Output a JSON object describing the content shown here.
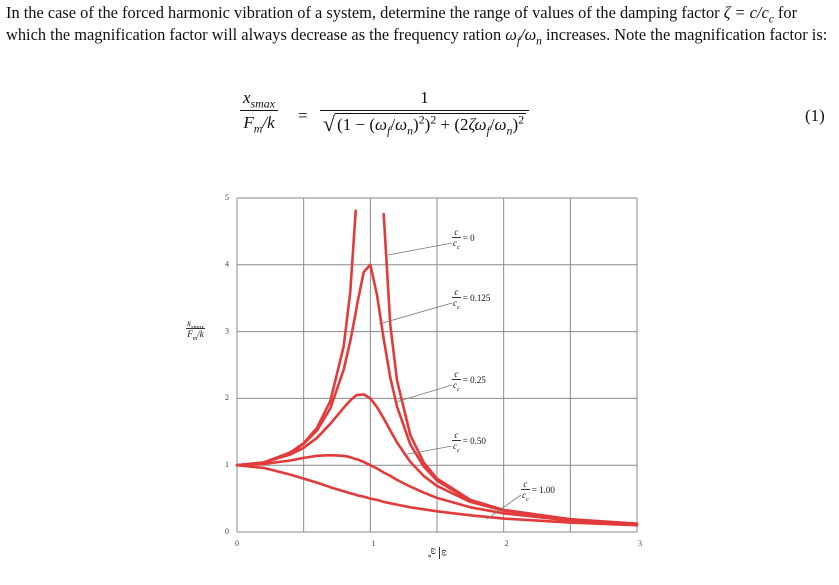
{
  "paragraph": [
    {
      "text": "In the case of the forced harmonic vibration of a system, determine the range of values of the damping factor ",
      "kind": "plain"
    },
    {
      "text": "ζ = c/c",
      "kind": "math"
    },
    {
      "text": "c",
      "kind": "sub"
    },
    {
      "text": " for which the magnification factor will always decrease as the frequency ration ",
      "kind": "plain"
    },
    {
      "text": "ω",
      "kind": "math"
    },
    {
      "text": "f",
      "kind": "sub"
    },
    {
      "text": "/ω",
      "kind": "math"
    },
    {
      "text": "n",
      "kind": "sub"
    },
    {
      "text": " increases. Note the magnification factor is:",
      "kind": "plain"
    }
  ],
  "equation": {
    "lhs_num": [
      {
        "text": "x",
        "kind": "math"
      },
      {
        "text": "smax",
        "kind": "sub"
      }
    ],
    "lhs_den": [
      {
        "text": "F",
        "kind": "math"
      },
      {
        "text": "m",
        "kind": "sub"
      },
      {
        "text": "/k",
        "kind": "math"
      }
    ],
    "relation": "=",
    "rhs_num": [
      {
        "text": "1",
        "kind": "plain"
      }
    ],
    "rhs_den": [
      {
        "text": "(1 − (",
        "kind": "plain"
      },
      {
        "text": "ω",
        "kind": "math"
      },
      {
        "text": "f",
        "kind": "sub"
      },
      {
        "text": "/",
        "kind": "plain"
      },
      {
        "text": "ω",
        "kind": "math"
      },
      {
        "text": "n",
        "kind": "sub"
      },
      {
        "text": ")",
        "kind": "plain"
      },
      {
        "text": "2",
        "kind": "sup"
      },
      {
        "text": ")",
        "kind": "plain"
      },
      {
        "text": "2",
        "kind": "sup"
      },
      {
        "text": " + (2",
        "kind": "plain"
      },
      {
        "text": "ζω",
        "kind": "math"
      },
      {
        "text": "f",
        "kind": "sub"
      },
      {
        "text": "/",
        "kind": "plain"
      },
      {
        "text": "ω",
        "kind": "math"
      },
      {
        "text": "n",
        "kind": "sub"
      },
      {
        "text": ")",
        "kind": "plain"
      },
      {
        "text": "2",
        "kind": "sup"
      }
    ],
    "number": "(1)"
  },
  "chart_data": {
    "type": "line",
    "ylabel": {
      "num": [
        {
          "text": "x",
          "kind": "math"
        },
        {
          "text": "smax",
          "kind": "sub"
        }
      ],
      "den": [
        {
          "text": "F",
          "kind": "math"
        },
        {
          "text": "m",
          "kind": "sub"
        },
        {
          "text": "/k",
          "kind": "math"
        }
      ]
    },
    "xlabel": {
      "num": [
        {
          "text": "ω",
          "kind": "math"
        }
      ],
      "den": [
        {
          "text": "ω",
          "kind": "math"
        },
        {
          "text": "n",
          "kind": "sub"
        }
      ]
    },
    "label_fraction": {
      "num": [
        {
          "text": "c",
          "kind": "math"
        }
      ],
      "den": [
        {
          "text": "c",
          "kind": "math"
        },
        {
          "text": "c",
          "kind": "sub"
        }
      ]
    },
    "xlim": [
      0,
      3
    ],
    "ylim": [
      0,
      5
    ],
    "xticks": [
      0,
      1,
      2,
      3
    ],
    "yticks": [
      0,
      1,
      2,
      3,
      4,
      5
    ],
    "xgrid": [
      0,
      0.5,
      1,
      1.5,
      2,
      2.5,
      3
    ],
    "grid": true,
    "x": [
      0,
      0.2,
      0.4,
      0.5,
      0.6,
      0.7,
      0.8,
      0.85,
      0.89,
      0.9,
      0.95,
      1,
      1.05,
      1.1,
      1.15,
      1.2,
      1.3,
      1.4,
      1.5,
      1.75,
      2,
      2.5,
      3
    ],
    "series": [
      {
        "name": "= 0",
        "color": "#e23b3b",
        "values": [
          1,
          1.04,
          1.19,
          1.33,
          1.56,
          1.96,
          2.78,
          3.6,
          4.81,
          null,
          null,
          null,
          null,
          4.76,
          3.1,
          2.27,
          1.45,
          1.04,
          0.8,
          0.48,
          0.33,
          0.19,
          0.125
        ]
      },
      {
        "name": "= 0.125",
        "color": "#e23b3b",
        "values": [
          1,
          1.04,
          1.18,
          1.32,
          1.52,
          1.85,
          2.43,
          2.86,
          3.28,
          3.4,
          3.89,
          4,
          3.55,
          2.89,
          2.31,
          1.88,
          1.31,
          0.98,
          0.77,
          0.47,
          0.33,
          0.19,
          0.12
        ]
      },
      {
        "name": "= 0.25",
        "color": "#e23b3b",
        "values": [
          1,
          1.04,
          1.16,
          1.26,
          1.41,
          1.62,
          1.86,
          1.97,
          2.04,
          2.05,
          2.06,
          2,
          1.87,
          1.7,
          1.52,
          1.34,
          1.05,
          0.84,
          0.69,
          0.45,
          0.32,
          0.19,
          0.12
        ]
      },
      {
        "name": "= 0.50",
        "color": "#e23b3b",
        "values": [
          1,
          1.02,
          1.07,
          1.11,
          1.14,
          1.15,
          1.14,
          1.12,
          1.09,
          1.09,
          1.05,
          1,
          0.95,
          0.89,
          0.84,
          0.78,
          0.68,
          0.59,
          0.51,
          0.37,
          0.28,
          0.17,
          0.12
        ]
      },
      {
        "name": "= 1.00",
        "color": "#e23b3b",
        "values": [
          1,
          0.96,
          0.86,
          0.8,
          0.74,
          0.67,
          0.61,
          0.58,
          0.56,
          0.55,
          0.53,
          0.5,
          0.48,
          0.45,
          0.43,
          0.41,
          0.37,
          0.34,
          0.31,
          0.25,
          0.2,
          0.14,
          0.1
        ]
      }
    ]
  }
}
